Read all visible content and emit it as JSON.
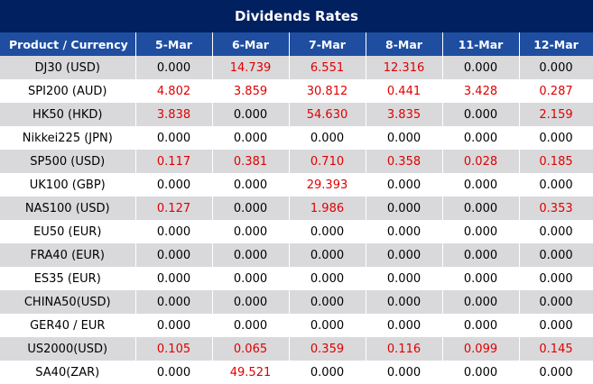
{
  "title": "Dividends Rates",
  "table": {
    "header": [
      "Product / Currency",
      "5-Mar",
      "6-Mar",
      "7-Mar",
      "8-Mar",
      "11-Mar",
      "12-Mar"
    ],
    "rows": [
      [
        "DJ30 (USD)",
        "0.000",
        "14.739",
        "6.551",
        "12.316",
        "0.000",
        "0.000"
      ],
      [
        "SPI200 (AUD)",
        "4.802",
        "3.859",
        "30.812",
        "0.441",
        "3.428",
        "0.287"
      ],
      [
        "HK50 (HKD)",
        "3.838",
        "0.000",
        "54.630",
        "3.835",
        "0.000",
        "2.159"
      ],
      [
        "Nikkei225 (JPN)",
        "0.000",
        "0.000",
        "0.000",
        "0.000",
        "0.000",
        "0.000"
      ],
      [
        "SP500 (USD)",
        "0.117",
        "0.381",
        "0.710",
        "0.358",
        "0.028",
        "0.185"
      ],
      [
        "UK100 (GBP)",
        "0.000",
        "0.000",
        "29.393",
        "0.000",
        "0.000",
        "0.000"
      ],
      [
        "NAS100 (USD)",
        "0.127",
        "0.000",
        "1.986",
        "0.000",
        "0.000",
        "0.353"
      ],
      [
        "EU50 (EUR)",
        "0.000",
        "0.000",
        "0.000",
        "0.000",
        "0.000",
        "0.000"
      ],
      [
        "FRA40 (EUR)",
        "0.000",
        "0.000",
        "0.000",
        "0.000",
        "0.000",
        "0.000"
      ],
      [
        "ES35 (EUR)",
        "0.000",
        "0.000",
        "0.000",
        "0.000",
        "0.000",
        "0.000"
      ],
      [
        "CHINA50(USD)",
        "0.000",
        "0.000",
        "0.000",
        "0.000",
        "0.000",
        "0.000"
      ],
      [
        "GER40 / EUR",
        "0.000",
        "0.000",
        "0.000",
        "0.000",
        "0.000",
        "0.000"
      ],
      [
        "US2000(USD)",
        "0.105",
        "0.065",
        "0.359",
        "0.116",
        "0.099",
        "0.145"
      ],
      [
        "SA40(ZAR)",
        "0.000",
        "49.521",
        "0.000",
        "0.000",
        "0.000",
        "0.000"
      ]
    ]
  }
}
